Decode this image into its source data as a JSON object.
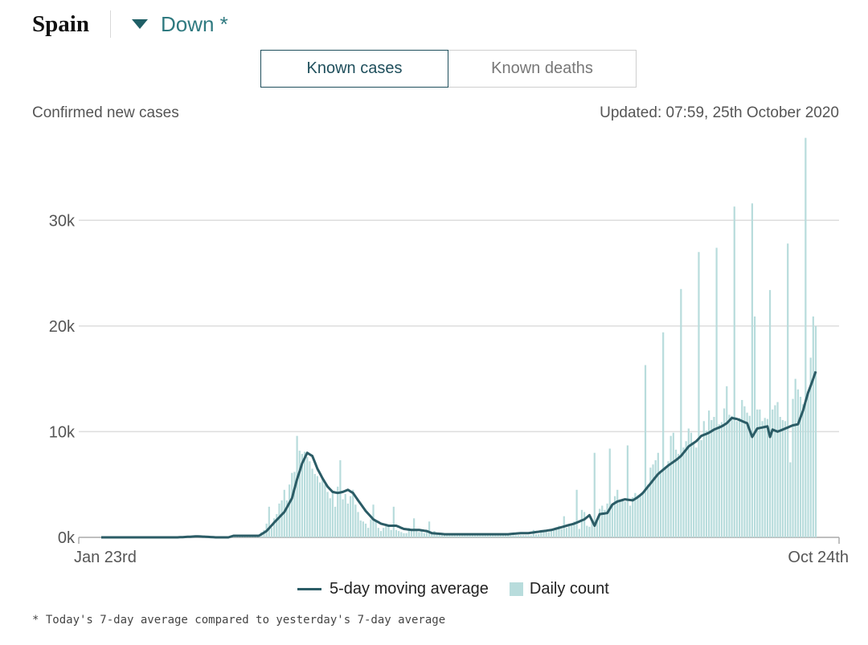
{
  "header": {
    "country": "Spain",
    "trend": "Down *"
  },
  "tabs": [
    {
      "label": "Known cases",
      "active": true
    },
    {
      "label": "Known deaths",
      "active": false
    }
  ],
  "subtitle": "Confirmed new cases",
  "updated": "Updated: 07:59, 25th October 2020",
  "legend": {
    "line_label": "5-day moving average",
    "bar_label": "Daily count"
  },
  "footnote": "* Today's 7-day average compared to yesterday's 7-day average",
  "colors": {
    "bar": "#b8dcdc",
    "line": "#2b5c66",
    "accent": "#2f7a80",
    "grid": "#dddddd"
  },
  "chart_data": {
    "type": "bar+line",
    "x_start": "Jan 23rd",
    "x_end": "Oct 24th",
    "x_tick_labels": [
      "Jan 23rd",
      "Oct 24th"
    ],
    "y_ticks": [
      0,
      10000,
      20000,
      30000
    ],
    "y_tick_labels": [
      "0k",
      "10k",
      "20k",
      "30k"
    ],
    "ylim": [
      0,
      38000
    ],
    "grid": true,
    "legend_position": "bottom",
    "series": [
      {
        "name": "Daily count",
        "type": "bar"
      },
      {
        "name": "5-day moving average",
        "type": "line"
      }
    ],
    "daily_anchors": [
      [
        0,
        0
      ],
      [
        30,
        0
      ],
      [
        37,
        120
      ],
      [
        44,
        120
      ],
      [
        45,
        0
      ],
      [
        50,
        0
      ],
      [
        51,
        160
      ],
      [
        55,
        160
      ],
      [
        60,
        180
      ],
      [
        62,
        140
      ],
      [
        63,
        500
      ],
      [
        64,
        700
      ],
      [
        65,
        1300
      ],
      [
        66,
        2900
      ],
      [
        67,
        900
      ],
      [
        68,
        1800
      ],
      [
        69,
        2200
      ],
      [
        70,
        3200
      ],
      [
        71,
        3500
      ],
      [
        72,
        4500
      ],
      [
        73,
        3500
      ],
      [
        74,
        5000
      ],
      [
        75,
        6100
      ],
      [
        76,
        6200
      ],
      [
        77,
        9600
      ],
      [
        78,
        8200
      ],
      [
        79,
        7900
      ],
      [
        80,
        8100
      ],
      [
        81,
        7600
      ],
      [
        82,
        7200
      ],
      [
        83,
        6500
      ],
      [
        84,
        6000
      ],
      [
        85,
        5800
      ],
      [
        86,
        5200
      ],
      [
        87,
        5600
      ],
      [
        88,
        5000
      ],
      [
        89,
        4300
      ],
      [
        90,
        3700
      ],
      [
        91,
        4200
      ],
      [
        92,
        2900
      ],
      [
        93,
        4800
      ],
      [
        94,
        7300
      ],
      [
        95,
        3600
      ],
      [
        96,
        4100
      ],
      [
        97,
        3200
      ],
      [
        98,
        3900
      ],
      [
        99,
        4500
      ],
      [
        100,
        3100
      ],
      [
        101,
        2400
      ],
      [
        102,
        1600
      ],
      [
        103,
        1500
      ],
      [
        104,
        1300
      ],
      [
        105,
        900
      ],
      [
        106,
        1700
      ],
      [
        107,
        3100
      ],
      [
        108,
        1500
      ],
      [
        109,
        900
      ],
      [
        110,
        600
      ],
      [
        111,
        900
      ],
      [
        112,
        1100
      ],
      [
        113,
        1000
      ],
      [
        114,
        700
      ],
      [
        115,
        2900
      ],
      [
        116,
        700
      ],
      [
        117,
        600
      ],
      [
        118,
        500
      ],
      [
        119,
        400
      ],
      [
        120,
        400
      ],
      [
        121,
        900
      ],
      [
        122,
        700
      ],
      [
        123,
        1800
      ],
      [
        124,
        600
      ],
      [
        125,
        500
      ],
      [
        126,
        700
      ],
      [
        127,
        400
      ],
      [
        128,
        700
      ],
      [
        129,
        1500
      ],
      [
        130,
        300
      ],
      [
        131,
        600
      ],
      [
        132,
        400
      ],
      [
        133,
        300
      ],
      [
        135,
        300
      ],
      [
        140,
        300
      ],
      [
        141,
        200
      ],
      [
        150,
        300
      ],
      [
        151,
        200
      ],
      [
        160,
        300
      ],
      [
        161,
        200
      ],
      [
        169,
        200
      ],
      [
        170,
        700
      ],
      [
        171,
        300
      ],
      [
        172,
        300
      ],
      [
        173,
        700
      ],
      [
        174,
        600
      ],
      [
        175,
        700
      ],
      [
        176,
        500
      ],
      [
        177,
        600
      ],
      [
        178,
        700
      ],
      [
        179,
        800
      ],
      [
        180,
        1100
      ],
      [
        181,
        800
      ],
      [
        182,
        2000
      ],
      [
        183,
        900
      ],
      [
        184,
        1200
      ],
      [
        185,
        1100
      ],
      [
        186,
        1500
      ],
      [
        187,
        4500
      ],
      [
        188,
        800
      ],
      [
        189,
        2600
      ],
      [
        190,
        2400
      ],
      [
        191,
        1100
      ],
      [
        192,
        1000
      ],
      [
        193,
        1500
      ],
      [
        194,
        8000
      ],
      [
        195,
        1500
      ],
      [
        196,
        2700
      ],
      [
        197,
        3000
      ],
      [
        198,
        2600
      ],
      [
        199,
        3200
      ],
      [
        200,
        8400
      ],
      [
        201,
        3100
      ],
      [
        202,
        3900
      ],
      [
        203,
        4500
      ],
      [
        204,
        3600
      ],
      [
        205,
        3500
      ],
      [
        206,
        3400
      ],
      [
        207,
        8700
      ],
      [
        208,
        3000
      ],
      [
        209,
        3800
      ],
      [
        210,
        4200
      ],
      [
        211,
        4000
      ],
      [
        212,
        4100
      ],
      [
        213,
        4100
      ],
      [
        214,
        16300
      ],
      [
        215,
        5000
      ],
      [
        216,
        6600
      ],
      [
        217,
        6900
      ],
      [
        218,
        7300
      ],
      [
        219,
        8000
      ],
      [
        220,
        6300
      ],
      [
        221,
        19400
      ],
      [
        222,
        6700
      ],
      [
        223,
        7200
      ],
      [
        224,
        9600
      ],
      [
        225,
        9900
      ],
      [
        226,
        8300
      ],
      [
        227,
        7900
      ],
      [
        228,
        23500
      ],
      [
        229,
        8500
      ],
      [
        230,
        9100
      ],
      [
        231,
        10300
      ],
      [
        232,
        9900
      ],
      [
        233,
        8900
      ],
      [
        234,
        8500
      ],
      [
        235,
        27000
      ],
      [
        236,
        9200
      ],
      [
        237,
        11000
      ],
      [
        238,
        10100
      ],
      [
        239,
        12000
      ],
      [
        240,
        11100
      ],
      [
        241,
        11400
      ],
      [
        242,
        27400
      ],
      [
        243,
        10700
      ],
      [
        244,
        10900
      ],
      [
        245,
        12200
      ],
      [
        246,
        14300
      ],
      [
        247,
        11600
      ],
      [
        248,
        11500
      ],
      [
        249,
        31300
      ],
      [
        250,
        11000
      ],
      [
        251,
        11300
      ],
      [
        252,
        13000
      ],
      [
        253,
        12400
      ],
      [
        254,
        11800
      ],
      [
        255,
        11500
      ],
      [
        256,
        31600
      ],
      [
        257,
        20900
      ],
      [
        258,
        12100
      ],
      [
        259,
        12100
      ],
      [
        260,
        11000
      ],
      [
        261,
        11300
      ],
      [
        262,
        11200
      ],
      [
        263,
        23400
      ],
      [
        264,
        12100
      ],
      [
        265,
        12500
      ],
      [
        266,
        12800
      ],
      [
        267,
        11400
      ],
      [
        268,
        11100
      ],
      [
        269,
        11000
      ],
      [
        270,
        27800
      ],
      [
        271,
        7100
      ],
      [
        272,
        13100
      ],
      [
        273,
        15000
      ],
      [
        274,
        14000
      ],
      [
        275,
        13300
      ],
      [
        276,
        12600
      ],
      [
        277,
        37800
      ],
      [
        278,
        13800
      ],
      [
        279,
        17000
      ],
      [
        280,
        20900
      ],
      [
        281,
        20000
      ]
    ],
    "moving_average_anchors": [
      [
        0,
        0
      ],
      [
        30,
        0
      ],
      [
        38,
        100
      ],
      [
        45,
        0
      ],
      [
        50,
        0
      ],
      [
        52,
        150
      ],
      [
        62,
        150
      ],
      [
        65,
        600
      ],
      [
        68,
        1400
      ],
      [
        72,
        2400
      ],
      [
        75,
        3700
      ],
      [
        77,
        5500
      ],
      [
        79,
        7000
      ],
      [
        81,
        8000
      ],
      [
        83,
        7700
      ],
      [
        85,
        6500
      ],
      [
        87,
        5600
      ],
      [
        89,
        4800
      ],
      [
        91,
        4300
      ],
      [
        93,
        4200
      ],
      [
        95,
        4300
      ],
      [
        97,
        4500
      ],
      [
        99,
        4200
      ],
      [
        101,
        3500
      ],
      [
        104,
        2500
      ],
      [
        107,
        1700
      ],
      [
        110,
        1300
      ],
      [
        113,
        1100
      ],
      [
        116,
        1100
      ],
      [
        119,
        800
      ],
      [
        122,
        700
      ],
      [
        125,
        700
      ],
      [
        128,
        600
      ],
      [
        130,
        400
      ],
      [
        135,
        300
      ],
      [
        160,
        300
      ],
      [
        165,
        400
      ],
      [
        168,
        400
      ],
      [
        171,
        500
      ],
      [
        174,
        600
      ],
      [
        177,
        700
      ],
      [
        180,
        900
      ],
      [
        183,
        1100
      ],
      [
        186,
        1300
      ],
      [
        188,
        1500
      ],
      [
        190,
        1700
      ],
      [
        192,
        2100
      ],
      [
        194,
        1100
      ],
      [
        196,
        2200
      ],
      [
        199,
        2300
      ],
      [
        201,
        3100
      ],
      [
        203,
        3400
      ],
      [
        206,
        3600
      ],
      [
        209,
        3500
      ],
      [
        211,
        3800
      ],
      [
        213,
        4200
      ],
      [
        216,
        5100
      ],
      [
        219,
        6000
      ],
      [
        221,
        6400
      ],
      [
        223,
        6800
      ],
      [
        226,
        7300
      ],
      [
        228,
        7700
      ],
      [
        231,
        8600
      ],
      [
        234,
        9100
      ],
      [
        236,
        9600
      ],
      [
        239,
        9900
      ],
      [
        241,
        10200
      ],
      [
        244,
        10500
      ],
      [
        246,
        10800
      ],
      [
        248,
        11300
      ],
      [
        250,
        11200
      ],
      [
        252,
        11000
      ],
      [
        254,
        10800
      ],
      [
        256,
        9500
      ],
      [
        258,
        10300
      ],
      [
        260,
        10400
      ],
      [
        262,
        10500
      ],
      [
        263,
        9500
      ],
      [
        264,
        10200
      ],
      [
        266,
        10000
      ],
      [
        268,
        10200
      ],
      [
        270,
        10400
      ],
      [
        272,
        10600
      ],
      [
        274,
        10700
      ],
      [
        276,
        12000
      ],
      [
        278,
        13700
      ],
      [
        280,
        15000
      ],
      [
        281,
        15700
      ]
    ]
  }
}
